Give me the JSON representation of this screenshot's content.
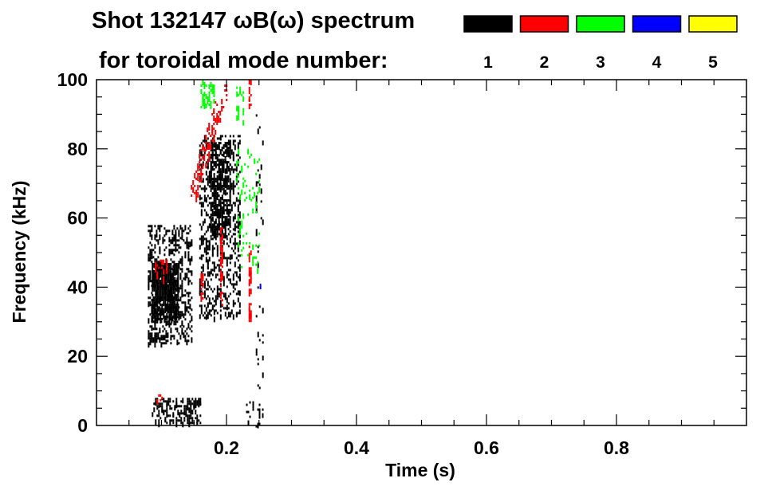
{
  "chart_data": {
    "type": "heatmap",
    "title_line1": "Shot 132147 ωB(ω) spectrum",
    "title_line2": "for toroidal mode number:",
    "xlabel": "Time (s)",
    "ylabel": "Frequency (kHz)",
    "xlim": [
      0,
      1.0
    ],
    "ylim": [
      0,
      100
    ],
    "x_ticks": [
      0.2,
      0.4,
      0.6,
      0.8
    ],
    "x_tick_labels": [
      "0.2",
      "0.4",
      "0.6",
      "0.8"
    ],
    "y_ticks": [
      0,
      20,
      40,
      60,
      80,
      100
    ],
    "y_tick_labels": [
      "0",
      "20",
      "40",
      "60",
      "80",
      "100"
    ],
    "legend": [
      {
        "label": "1",
        "color": "#000000"
      },
      {
        "label": "2",
        "color": "#ff0000"
      },
      {
        "label": "3",
        "color": "#00ff00"
      },
      {
        "label": "4",
        "color": "#0000ff"
      },
      {
        "label": "5",
        "color": "#ffff00"
      }
    ],
    "regions": [
      {
        "mode": 1,
        "t": [
          0.079,
          0.146
        ],
        "f": [
          24,
          58
        ],
        "density": 0.35
      },
      {
        "mode": 1,
        "t": [
          0.085,
          0.125
        ],
        "f": [
          31,
          47
        ],
        "density": 0.85
      },
      {
        "mode": 1,
        "t": [
          0.158,
          0.22
        ],
        "f": [
          31,
          84
        ],
        "density": 0.3
      },
      {
        "mode": 1,
        "t": [
          0.175,
          0.205
        ],
        "f": [
          55,
          82
        ],
        "density": 0.55
      },
      {
        "mode": 1,
        "t": [
          0.085,
          0.16
        ],
        "f": [
          1,
          8
        ],
        "density": 0.4
      },
      {
        "mode": 1,
        "t": [
          0.23,
          0.255
        ],
        "f": [
          0,
          7
        ],
        "density": 0.2
      },
      {
        "mode": 1,
        "t": [
          0.245,
          0.255
        ],
        "f": [
          10,
          90
        ],
        "density": 0.08
      },
      {
        "mode": 2,
        "t": [
          0.145,
          0.2
        ],
        "f": [
          66,
          100
        ],
        "density": 0.35,
        "diagonal": true
      },
      {
        "mode": 2,
        "t": [
          0.09,
          0.11
        ],
        "f": [
          42,
          48
        ],
        "density": 0.3
      },
      {
        "mode": 2,
        "t": [
          0.234,
          0.238
        ],
        "f": [
          30,
          52
        ],
        "density": 0.5
      },
      {
        "mode": 2,
        "t": [
          0.234,
          0.238
        ],
        "f": [
          93,
          100
        ],
        "density": 0.6
      },
      {
        "mode": 2,
        "t": [
          0.19,
          0.193
        ],
        "f": [
          35,
          58
        ],
        "density": 0.5
      },
      {
        "mode": 2,
        "t": [
          0.16,
          0.163
        ],
        "f": [
          36,
          44
        ],
        "density": 0.6
      },
      {
        "mode": 2,
        "t": [
          0.09,
          0.1
        ],
        "f": [
          7,
          9
        ],
        "density": 0.5
      },
      {
        "mode": 3,
        "t": [
          0.16,
          0.18
        ],
        "f": [
          92,
          100
        ],
        "density": 0.35
      },
      {
        "mode": 3,
        "t": [
          0.215,
          0.25
        ],
        "f": [
          45,
          80
        ],
        "density": 0.12
      },
      {
        "mode": 3,
        "t": [
          0.215,
          0.225
        ],
        "f": [
          88,
          98
        ],
        "density": 0.3
      },
      {
        "mode": 4,
        "t": [
          0.251,
          0.253
        ],
        "f": [
          40,
          41
        ],
        "density": 1.0
      }
    ]
  }
}
